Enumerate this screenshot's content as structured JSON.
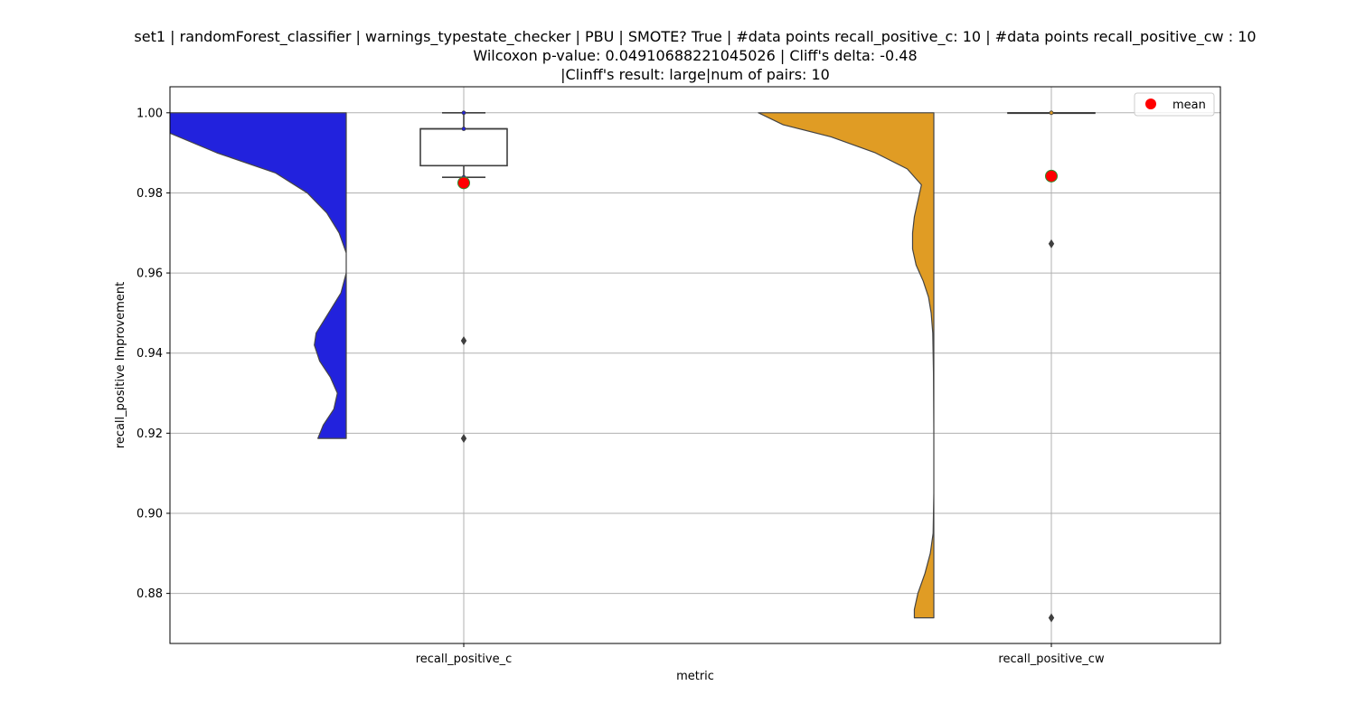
{
  "chart_data": {
    "type": "violin-box",
    "title_lines": [
      "set1 | randomForest_classifier | warnings_typestate_checker | PBU | SMOTE? True | #data points recall_positive_c: 10 | #data points recall_positive_cw : 10",
      "Wilcoxon p-value: 0.04910688221045026 | Cliff's delta: -0.48",
      "|Clinff's result: large|num of pairs: 10"
    ],
    "xlabel": "metric",
    "ylabel": "recall_positive Improvement",
    "categories": [
      "recall_positive_c",
      "recall_positive_cw"
    ],
    "ylim": [
      0.8675,
      1.0065
    ],
    "yticks": [
      0.88,
      0.9,
      0.92,
      0.94,
      0.96,
      0.98,
      1.0
    ],
    "ytick_labels": [
      "0.88",
      "0.90",
      "0.92",
      "0.94",
      "0.96",
      "0.98",
      "1.00"
    ],
    "grid": true,
    "legend": {
      "position": "top-right",
      "entries": [
        {
          "label": "mean",
          "color": "#ff0000"
        }
      ]
    },
    "series": [
      {
        "category": "recall_positive_c",
        "violin_color": "#2222dd",
        "violin_range": [
          0.9187,
          1.0
        ],
        "density": [
          [
            1.0,
            1.0
          ],
          [
            0.995,
            1.0
          ],
          [
            0.99,
            0.73
          ],
          [
            0.985,
            0.4
          ],
          [
            0.98,
            0.22
          ],
          [
            0.975,
            0.11
          ],
          [
            0.97,
            0.04
          ],
          [
            0.965,
            0.0
          ],
          [
            0.96,
            0.0
          ],
          [
            0.955,
            0.03
          ],
          [
            0.95,
            0.1
          ],
          [
            0.945,
            0.17
          ],
          [
            0.942,
            0.18
          ],
          [
            0.938,
            0.15
          ],
          [
            0.934,
            0.09
          ],
          [
            0.93,
            0.05
          ],
          [
            0.926,
            0.07
          ],
          [
            0.922,
            0.13
          ],
          [
            0.9187,
            0.16
          ]
        ],
        "box": {
          "q1": 0.9868,
          "median": 0.996,
          "q3": 0.996,
          "whisker_low": 0.9839,
          "whisker_high": 1.0
        },
        "points": [
          1.0,
          0.996,
          0.9839
        ],
        "outliers": [
          0.9431,
          0.9187
        ],
        "mean": 0.9825
      },
      {
        "category": "recall_positive_cw",
        "violin_color": "#e09c24",
        "violin_range": [
          0.8739,
          1.0
        ],
        "density": [
          [
            1.0,
            0.99
          ],
          [
            0.997,
            0.85
          ],
          [
            0.994,
            0.58
          ],
          [
            0.99,
            0.33
          ],
          [
            0.986,
            0.15
          ],
          [
            0.982,
            0.07
          ],
          [
            0.978,
            0.09
          ],
          [
            0.974,
            0.11
          ],
          [
            0.97,
            0.12
          ],
          [
            0.966,
            0.12
          ],
          [
            0.962,
            0.1
          ],
          [
            0.958,
            0.06
          ],
          [
            0.954,
            0.03
          ],
          [
            0.95,
            0.015
          ],
          [
            0.945,
            0.006
          ],
          [
            0.935,
            0.002
          ],
          [
            0.92,
            0.0
          ],
          [
            0.905,
            0.0
          ],
          [
            0.895,
            0.004
          ],
          [
            0.89,
            0.02
          ],
          [
            0.885,
            0.05
          ],
          [
            0.88,
            0.09
          ],
          [
            0.876,
            0.11
          ],
          [
            0.8739,
            0.11
          ]
        ],
        "box": {
          "q1": 1.0,
          "median": 1.0,
          "q3": 1.0,
          "whisker_low": 1.0,
          "whisker_high": 1.0
        },
        "points": [
          1.0
        ],
        "outliers": [
          0.9673,
          0.8739
        ],
        "mean": 0.9842
      }
    ]
  }
}
